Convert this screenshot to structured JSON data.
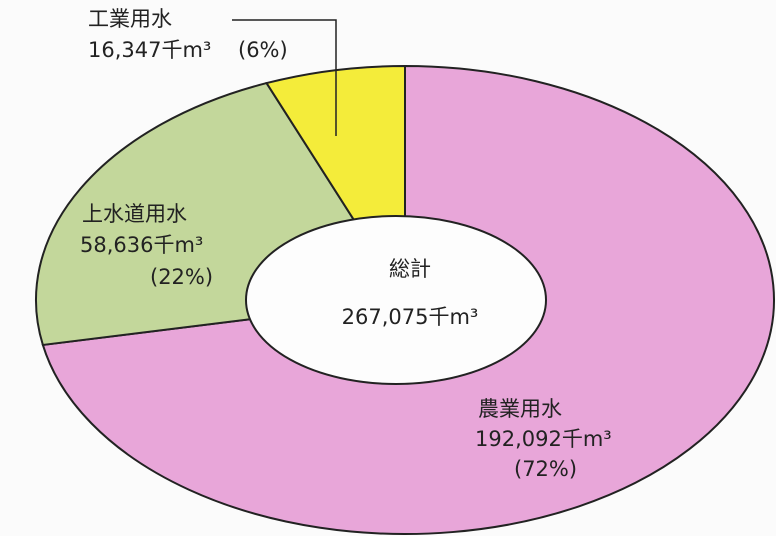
{
  "chart_data": {
    "type": "pie",
    "donut": true,
    "categories": [
      "農業用水",
      "上水道用水",
      "工業用水"
    ],
    "values": [
      192092,
      58636,
      16347
    ],
    "value_labels": [
      "192,092千m³",
      "58,636千m³",
      "16,347千m³"
    ],
    "percentages": [
      72,
      22,
      6
    ],
    "percentage_labels": [
      "(72%)",
      "(22%)",
      "(6%)"
    ],
    "colors": [
      "#e8a6d9",
      "#c3d79b",
      "#f4ec3a"
    ],
    "center_label": "総計",
    "total": 267075,
    "total_label": "267,075千m³"
  }
}
